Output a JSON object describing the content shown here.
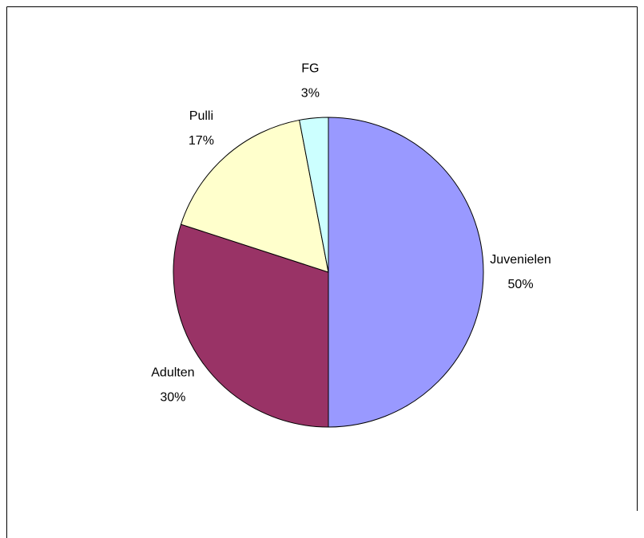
{
  "chart_data": {
    "type": "pie",
    "categories": [
      "Juvenielen",
      "Adulten",
      "Pulli",
      "FG"
    ],
    "values": [
      50,
      30,
      17,
      3
    ],
    "value_labels": [
      "50%",
      "30%",
      "17%",
      "3%"
    ],
    "colors": [
      "#9999ff",
      "#993366",
      "#ffffcc",
      "#ccffff"
    ]
  }
}
